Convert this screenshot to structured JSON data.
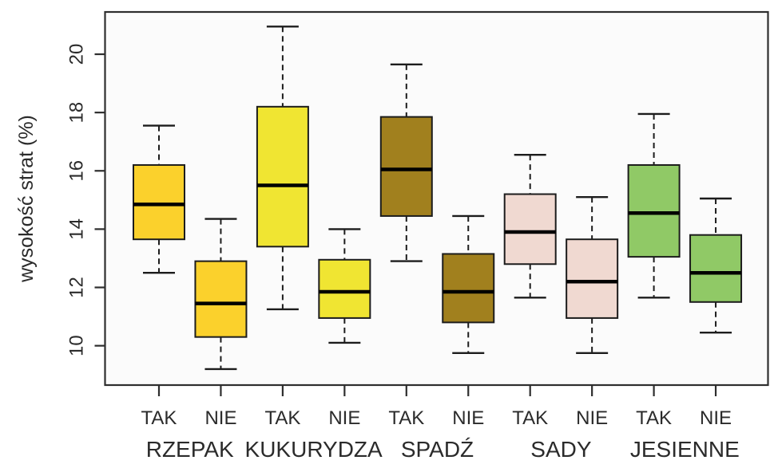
{
  "figure": {
    "title": "",
    "ylabel": "wysokość strat (%)"
  },
  "chart_data": {
    "type": "boxplot",
    "title": "",
    "xlabel": "",
    "ylabel": "wysokość strat (%)",
    "ylim": [
      8.65,
      21.45
    ],
    "yticks": [
      10,
      12,
      14,
      16,
      18,
      20
    ],
    "grid": "off",
    "legend": "none",
    "groups": [
      "RZEPAK",
      "KUKURYDZA",
      "SPADŹ",
      "SADY",
      "JESIENNE"
    ],
    "pair_labels": [
      "TAK",
      "NIE"
    ],
    "colors": {
      "panel_bg": "#fbfbfb",
      "frame": "#2e2e2e",
      "box_stroke": "#1c1c1c",
      "median": "#000000",
      "text": "#2b2b2b",
      "gold": "#FBD12C",
      "yellow": "#F0E532",
      "brown": "#A1801E",
      "pink": "#F0D9D1",
      "green": "#90C966"
    },
    "series": [
      {
        "group": "RZEPAK",
        "label": "TAK",
        "color_key": "gold",
        "whisker_low": 12.5,
        "q1": 13.65,
        "median": 14.85,
        "q3": 16.2,
        "whisker_high": 17.55
      },
      {
        "group": "RZEPAK",
        "label": "NIE",
        "color_key": "gold",
        "whisker_low": 9.2,
        "q1": 10.3,
        "median": 11.45,
        "q3": 12.9,
        "whisker_high": 14.35
      },
      {
        "group": "KUKURYDZA",
        "label": "TAK",
        "color_key": "yellow",
        "whisker_low": 11.25,
        "q1": 13.4,
        "median": 15.5,
        "q3": 18.2,
        "whisker_high": 20.95
      },
      {
        "group": "KUKURYDZA",
        "label": "NIE",
        "color_key": "yellow",
        "whisker_low": 10.1,
        "q1": 10.95,
        "median": 11.85,
        "q3": 12.95,
        "whisker_high": 14.0
      },
      {
        "group": "SPADŹ",
        "label": "TAK",
        "color_key": "brown",
        "whisker_low": 12.9,
        "q1": 14.45,
        "median": 16.05,
        "q3": 17.85,
        "whisker_high": 19.65
      },
      {
        "group": "SPADŹ",
        "label": "NIE",
        "color_key": "brown",
        "whisker_low": 9.75,
        "q1": 10.8,
        "median": 11.85,
        "q3": 13.15,
        "whisker_high": 14.45
      },
      {
        "group": "SADY",
        "label": "TAK",
        "color_key": "pink",
        "whisker_low": 11.65,
        "q1": 12.8,
        "median": 13.9,
        "q3": 15.2,
        "whisker_high": 16.55
      },
      {
        "group": "SADY",
        "label": "NIE",
        "color_key": "pink",
        "whisker_low": 9.75,
        "q1": 10.95,
        "median": 12.2,
        "q3": 13.65,
        "whisker_high": 15.1
      },
      {
        "group": "JESIENNE",
        "label": "TAK",
        "color_key": "green",
        "whisker_low": 11.65,
        "q1": 13.05,
        "median": 14.55,
        "q3": 16.2,
        "whisker_high": 17.95
      },
      {
        "group": "JESIENNE",
        "label": "NIE",
        "color_key": "green",
        "whisker_low": 10.45,
        "q1": 11.5,
        "median": 12.5,
        "q3": 13.8,
        "whisker_high": 15.05
      }
    ]
  }
}
